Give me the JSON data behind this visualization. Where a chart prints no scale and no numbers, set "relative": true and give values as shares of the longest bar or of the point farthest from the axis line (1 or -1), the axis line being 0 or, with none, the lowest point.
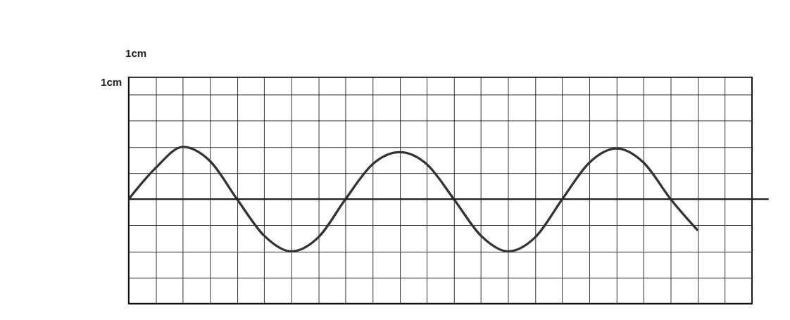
{
  "chart_data": {
    "type": "line",
    "relative": true,
    "categories": [
      null,
      null,
      null,
      null,
      null,
      null,
      null,
      null,
      null,
      null,
      null,
      null,
      null,
      null,
      null,
      null,
      null,
      null,
      null,
      null,
      null,
      null,
      null,
      null
    ],
    "series": [
      {
        "color": "#333333",
        "values": [
          0,
          0.6,
          1,
          0.73,
          0,
          -0.7,
          -1,
          -0.73,
          0,
          0.67,
          0.9,
          0.67,
          0,
          -0.7,
          -1,
          -0.73,
          0,
          0.7,
          0.97,
          0.7,
          0,
          -0.6,
          null,
          null
        ]
      }
    ],
    "ref_lines": [
      {
        "axis": "y",
        "value": 0,
        "color": "#222222"
      }
    ],
    "annotations": [
      "1cm",
      "1cm"
    ],
    "grid": true,
    "marker": "none",
    "line_style": "solid"
  }
}
